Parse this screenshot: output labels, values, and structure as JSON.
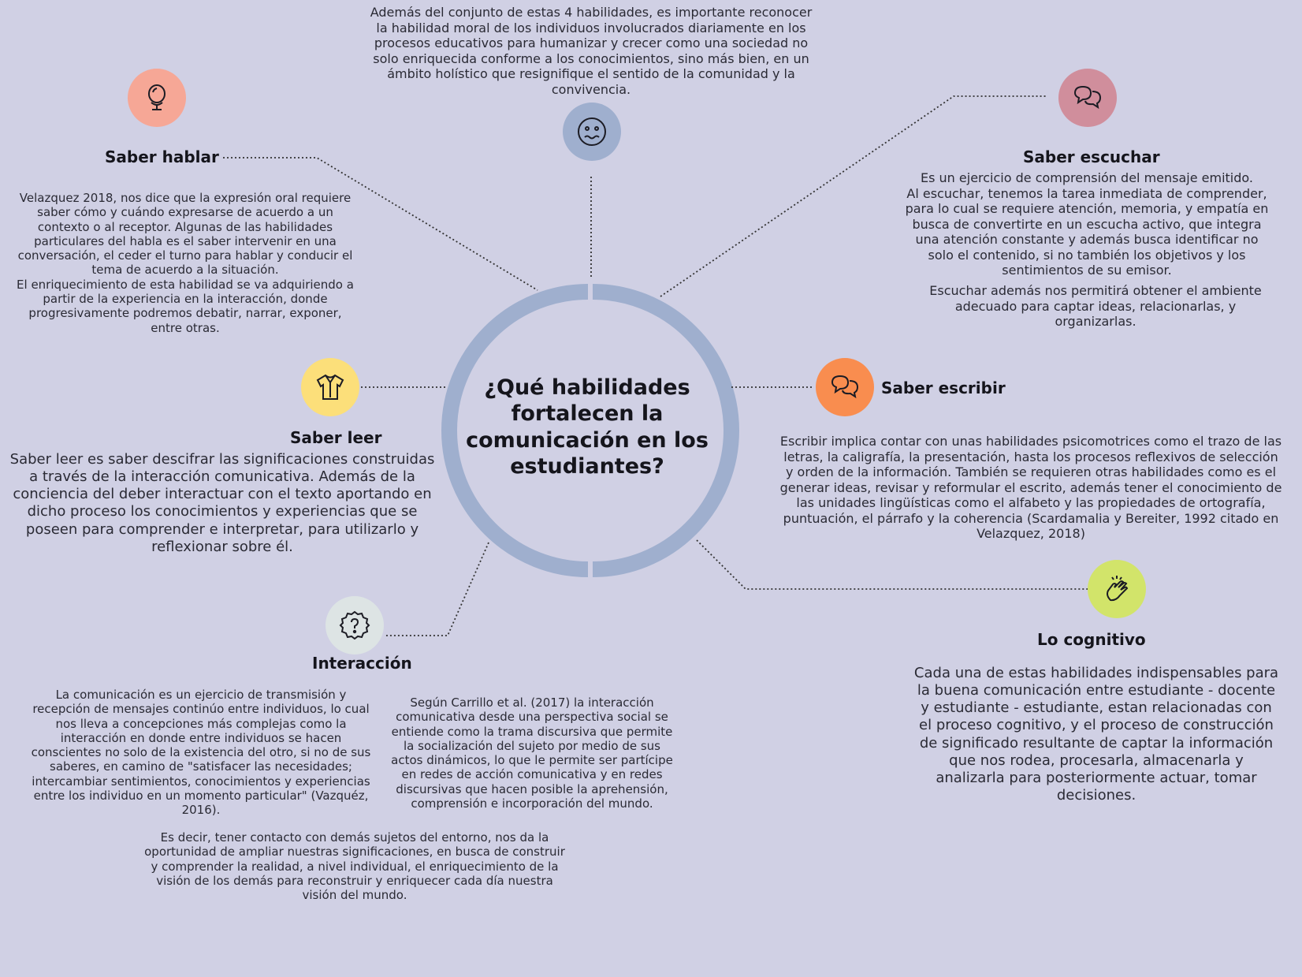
{
  "center": {
    "title": "¿Qué habilidades fortalecen la comunicación en los estudiantes?"
  },
  "colors": {
    "background": "#d0d0e4",
    "ring": "#9fafce",
    "saber_hablar": "#f6a796",
    "saber_escuchar": "#d08e9c",
    "saber_leer": "#fcdf7a",
    "saber_escribir": "#f98d4f",
    "interaccion": "#dde4e4",
    "lo_cognitivo": "#d2e46a",
    "moral": "#9fafce"
  },
  "top_note": {
    "icon": "worried-face-icon",
    "text": "Además del conjunto de estas 4 habilidades, es importante reconocer\nla habilidad moral de los individuos involucrados diariamente en los\nprocesos educativos para  humanizar y crecer como una sociedad no\nsolo enriquecida conforme a los conocimientos, sino más bien, en un\námbito holístico que resignifique el sentido de la comunidad y la\nconvivencia."
  },
  "saber_hablar": {
    "icon": "mirror-icon",
    "title": "Saber hablar",
    "text": "Velazquez 2018, nos dice que la expresión oral requiere\nsaber cómo y cuándo expresarse de acuerdo a un\ncontexto o al receptor. Algunas de las habilidades\nparticulares del habla es  el saber intervenir en una\nconversación, el ceder el turno para hablar y conducir el\ntema de acuerdo a la situación.\nEl enriquecimiento de esta habilidad se va adquiriendo a\npartir de la experiencia en la interacción, donde\nprogresivamente podremos debatir, narrar, exponer,\nentre otras."
  },
  "saber_escuchar": {
    "icon": "speech-bubbles-icon",
    "title": "Saber escuchar",
    "text": "Es un ejercicio de comprensión del mensaje emitido.\nAl escuchar, tenemos la tarea inmediata de comprender,\npara lo cual se requiere atención, memoria, y empatía en\nbusca de convertirte en un escucha activo, que integra\nuna atención constante y además busca identificar no\nsolo el contenido, si no también los objetivos y los\nsentimientos de su emisor.",
    "text2": "Escuchar además nos permitirá obtener el ambiente\nadecuado para captar ideas, relacionarlas, y\norganizarlas."
  },
  "saber_leer": {
    "icon": "shirt-icon",
    "title": "Saber leer",
    "text": "Saber leer es saber descifrar las significaciones construidas\na través de la interacción comunicativa. Además de la\nconciencia del deber interactuar con el texto aportando en\ndicho proceso los conocimientos y experiencias que se\nposeen para comprender e interpretar,  para utilizarlo y\nreflexionar sobre él."
  },
  "saber_escribir": {
    "icon": "speech-bubbles-icon",
    "title": "Saber escribir",
    "text": "Escribir implica contar con unas habilidades psicomotrices como el trazo de las\nletras, la caligrafía, la presentación, hasta los procesos reflexivos de selección\ny orden de la información. También se requieren otras habilidades como es el\ngenerar ideas, revisar y reformular el escrito, además tener el conocimiento de\nlas unidades lingüísticas como el alfabeto y las propiedades de ortografía,\npuntuación, el párrafo y la coherencia (Scardamalia y Bereiter, 1992 citado en\nVelazquez, 2018)"
  },
  "interaccion": {
    "icon": "question-badge-icon",
    "title": "Interacción",
    "text": "La comunicación es un ejercicio de transmisión y\nrecepción de mensajes continúo entre individuos, lo cual\nnos lleva a concepciones más complejas como la\ninteracción en donde entre individuos se hacen\nconscientes no solo de la existencia del otro, si no de sus\nsaberes, en camino de \"satisfacer las necesidades;\nintercambiar sentimientos, conocimientos y experiencias\nentre los individuo en un momento particular\" (Vazquéz,\n2016).",
    "text2": "Según Carrillo et al. (2017) la interacción\ncomunicativa desde una perspectiva social se\nentiende como la trama discursiva que permite\nla socialización del sujeto por medio de sus\nactos dinámicos, lo que le permite ser partícipe\nen redes de acción comunicativa y en redes\ndiscursivas que hacen posible la aprehensión,\ncomprensión e incorporación del mundo.",
    "text3": "Es decir, tener contacto con demás sujetos del entorno, nos da la\noportunidad de ampliar nuestras significaciones, en busca de construir\ny comprender la realidad, a nivel individual, el enriquecimiento de la\nvisión de los demás para reconstruir y enriquecer cada día nuestra\nvisión del mundo."
  },
  "lo_cognitivo": {
    "icon": "clapping-hands-icon",
    "title": "Lo cognitivo",
    "text": "Cada una de estas habilidades indispensables para\nla buena comunicación entre estudiante - docente\ny estudiante - estudiante, estan relacionadas con\nel proceso cognitivo, y el proceso de construcción\nde significado resultante de captar la información\nque nos rodea, procesarla, almacenarla y\nanalizarla para posteriormente actuar, tomar\ndecisiones."
  }
}
